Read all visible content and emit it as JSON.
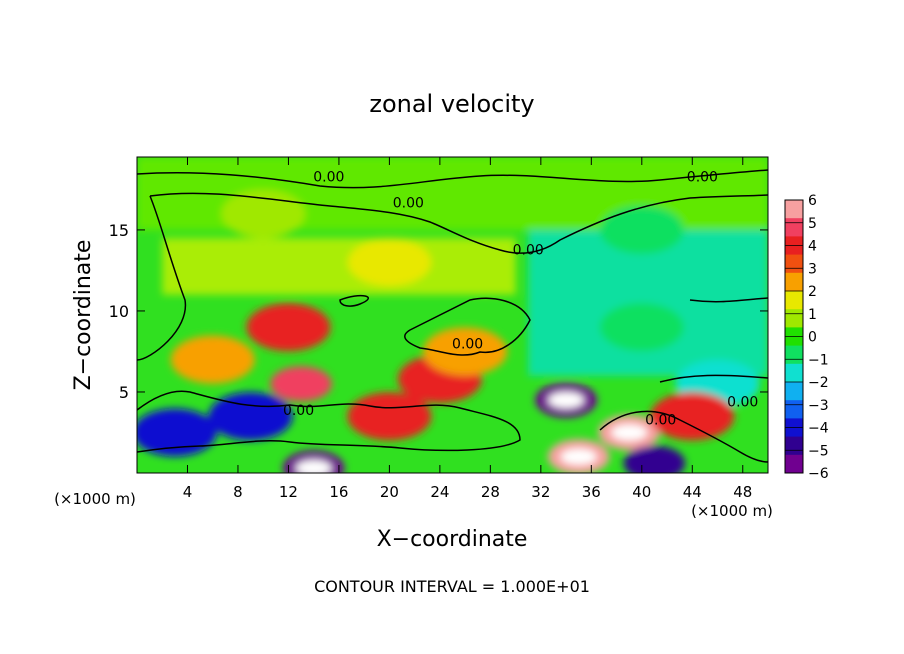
{
  "chart_data": {
    "type": "heatmap",
    "title": "zonal velocity",
    "xlabel": "X−coordinate",
    "ylabel": "Z−coordinate",
    "x_unit_left": "(×1000 m)",
    "x_unit_right": "(×1000 m)",
    "footer": "CONTOUR INTERVAL = 1.000E+01",
    "xlim": [
      0,
      50
    ],
    "ylim": [
      0,
      19.5
    ],
    "x_ticks": [
      4,
      8,
      12,
      16,
      20,
      24,
      28,
      32,
      36,
      40,
      44,
      48
    ],
    "y_ticks": [
      5,
      10,
      15
    ],
    "colorbar": {
      "ticks": [
        6,
        5,
        4,
        3,
        2,
        1,
        0,
        -1,
        -2,
        -3,
        -4,
        -5,
        -6
      ],
      "tick_labels": [
        "6",
        "5",
        "4",
        "3",
        "2",
        "1",
        "0",
        "−1",
        "−2",
        "−3",
        "−4",
        "−5",
        "−6"
      ],
      "colors": [
        "#f7a0a0",
        "#f04060",
        "#e82020",
        "#f05010",
        "#f8a000",
        "#e8e800",
        "#a0e800",
        "#20e000",
        "#10e060",
        "#10e0d0",
        "#10b0f0",
        "#1060f0",
        "#1010d0",
        "#300090",
        "#700090"
      ]
    },
    "contour_labels": [
      {
        "text": "0.00",
        "x": 15.2,
        "z": 18.3
      },
      {
        "text": "0.00",
        "x": 44.8,
        "z": 18.3
      },
      {
        "text": "0.00",
        "x": 21.5,
        "z": 16.7
      },
      {
        "text": "0.00",
        "x": 31.0,
        "z": 13.8
      },
      {
        "text": "0.00",
        "x": 26.2,
        "z": 8.0
      },
      {
        "text": "0.00",
        "x": 12.8,
        "z": 3.9
      },
      {
        "text": "0.00",
        "x": 41.5,
        "z": 3.3
      },
      {
        "text": "0.00",
        "x": 48.0,
        "z": 4.4
      }
    ],
    "field_features": [
      {
        "x": 12,
        "z": 9,
        "value": 4
      },
      {
        "x": 13,
        "z": 5.5,
        "value": 5
      },
      {
        "x": 20,
        "z": 3.5,
        "value": 4
      },
      {
        "x": 24,
        "z": 5.8,
        "value": 4
      },
      {
        "x": 26,
        "z": 7.5,
        "value": 3
      },
      {
        "x": 6,
        "z": 7,
        "value": 3
      },
      {
        "x": 34,
        "z": 4.5,
        "value": -6
      },
      {
        "x": 39,
        "z": 2.5,
        "value": 6
      },
      {
        "x": 35,
        "z": 1,
        "value": 6
      },
      {
        "x": 14,
        "z": 0.3,
        "value": -6
      },
      {
        "x": 3,
        "z": 2.5,
        "value": -4
      },
      {
        "x": 9,
        "z": 3.5,
        "value": -4
      },
      {
        "x": 41,
        "z": 0.6,
        "value": -5
      },
      {
        "x": 46,
        "z": 5.5,
        "value": -2
      },
      {
        "x": 44,
        "z": 3.5,
        "value": 4
      },
      {
        "x": 40,
        "z": 9,
        "value": -1
      },
      {
        "x": 40,
        "z": 15,
        "value": -1
      },
      {
        "x": 20,
        "z": 13,
        "value": 1.5
      },
      {
        "x": 10,
        "z": 16,
        "value": 0.5
      }
    ]
  }
}
